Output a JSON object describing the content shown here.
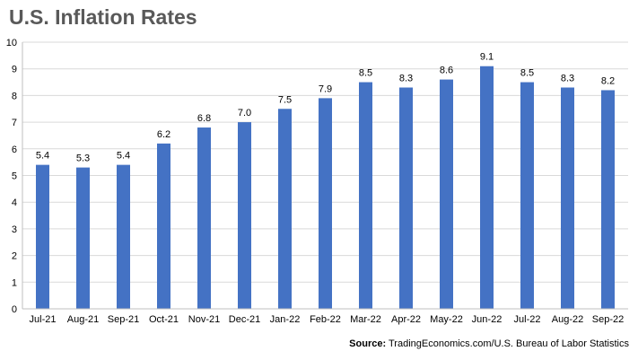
{
  "title": "U.S. Inflation Rates",
  "source_label": "Source:",
  "source_text": "TradingEconomics.com/U.S. Bureau of Labor Statistics",
  "chart_data": {
    "type": "bar",
    "title": "U.S. Inflation Rates",
    "xlabel": "",
    "ylabel": "",
    "categories": [
      "Jul-21",
      "Aug-21",
      "Sep-21",
      "Oct-21",
      "Nov-21",
      "Dec-21",
      "Jan-22",
      "Feb-22",
      "Mar-22",
      "Apr-22",
      "May-22",
      "Jun-22",
      "Jul-22",
      "Aug-22",
      "Sep-22"
    ],
    "values": [
      5.4,
      5.3,
      5.4,
      6.2,
      6.8,
      7.0,
      7.5,
      7.9,
      8.5,
      8.3,
      8.6,
      9.1,
      8.5,
      8.3,
      8.2
    ],
    "data_labels": [
      "5.4",
      "5.3",
      "5.4",
      "6.2",
      "6.8",
      "7.0",
      "7.5",
      "7.9",
      "8.5",
      "8.3",
      "8.6",
      "9.1",
      "8.5",
      "8.3",
      "8.2"
    ],
    "ylim": [
      0,
      10
    ],
    "yticks": [
      0,
      1,
      2,
      3,
      4,
      5,
      6,
      7,
      8,
      9,
      10
    ],
    "grid": true,
    "bar_color": "#4472C4",
    "grid_color": "#D9D9D9"
  }
}
